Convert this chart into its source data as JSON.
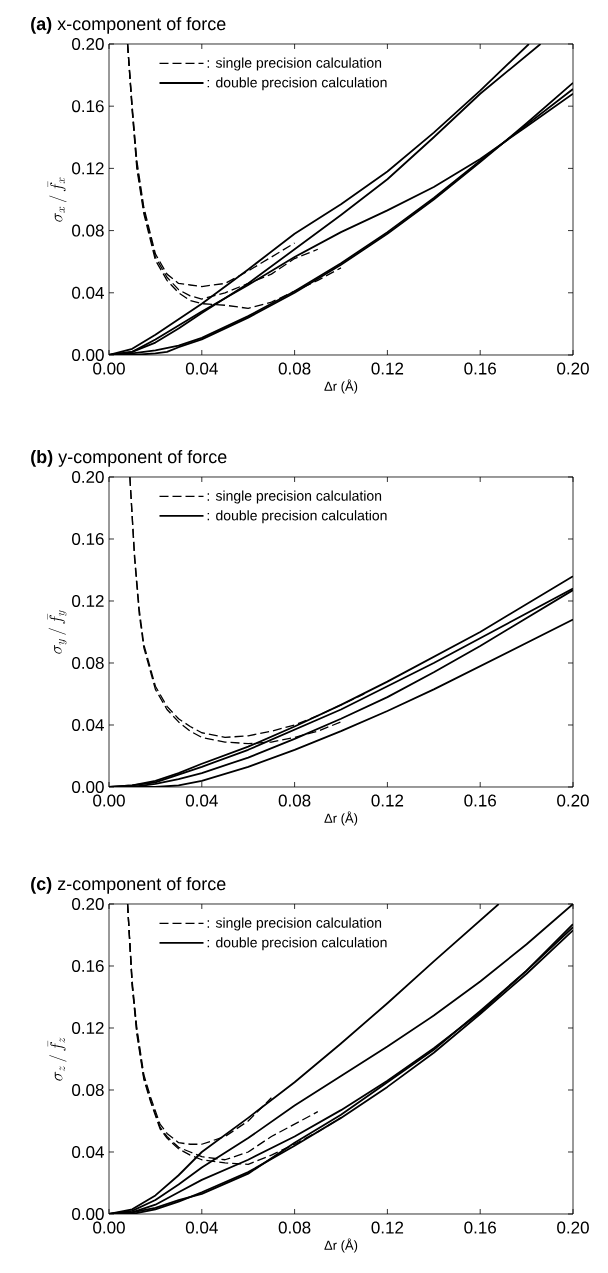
{
  "chart_data": [
    {
      "type": "line",
      "title": "**(a)** x-component of force",
      "xlabel": "Δr (Å)",
      "ylabel": "\\sigma_{x} \\,/\\, \\bar{f}_{x}",
      "xlim": [
        0,
        0.2
      ],
      "ylim": [
        0,
        0.2
      ],
      "xticks": [
        {
          "value": 0,
          "label": "0.00"
        },
        {
          "value": 0.04,
          "label": "0.04"
        },
        {
          "value": 0.08,
          "label": "0.08"
        },
        {
          "value": 0.12,
          "label": "0.12"
        },
        {
          "value": 0.16,
          "label": "0.16"
        },
        {
          "value": 0.2,
          "label": "0.20"
        }
      ],
      "yticks": [
        {
          "value": 0,
          "label": "0.00"
        },
        {
          "value": 0.04,
          "label": "0.04"
        },
        {
          "value": 0.08,
          "label": "0.08"
        },
        {
          "value": 0.12,
          "label": "0.12"
        },
        {
          "value": 0.16,
          "label": "0.16"
        },
        {
          "value": 0.2,
          "label": "0.20"
        }
      ],
      "legend": "top left",
      "grid": false,
      "series": [
        {
          "name": ": single precision calculation",
          "color": "#000000",
          "line_style": "dashed",
          "x": [
            0.008,
            0.01,
            0.012,
            0.015,
            0.02,
            0.025,
            0.03,
            0.035,
            0.04,
            0.05,
            0.06,
            0.07,
            0.08
          ],
          "values": [
            0.2,
            0.16,
            0.125,
            0.095,
            0.065,
            0.052,
            0.046,
            0.045,
            0.044,
            0.046,
            0.054,
            0.063,
            0.072
          ]
        },
        {
          "color": "#000000",
          "line_style": "dashed",
          "x": [
            0.008,
            0.01,
            0.012,
            0.015,
            0.02,
            0.025,
            0.03,
            0.035,
            0.04,
            0.05,
            0.06,
            0.07,
            0.08,
            0.09
          ],
          "values": [
            0.2,
            0.158,
            0.122,
            0.093,
            0.063,
            0.05,
            0.042,
            0.038,
            0.036,
            0.04,
            0.046,
            0.052,
            0.062,
            0.068
          ]
        },
        {
          "color": "#000000",
          "line_style": "dashed",
          "x": [
            0.008,
            0.01,
            0.012,
            0.015,
            0.02,
            0.025,
            0.03,
            0.035,
            0.04,
            0.05,
            0.06,
            0.07,
            0.08,
            0.09,
            0.1
          ],
          "values": [
            0.2,
            0.157,
            0.12,
            0.091,
            0.061,
            0.048,
            0.04,
            0.035,
            0.033,
            0.032,
            0.03,
            0.034,
            0.041,
            0.048,
            0.056
          ]
        },
        {
          "name": ": double precision calculation",
          "color": "#000000",
          "line_style": "solid",
          "x": [
            0,
            0.01,
            0.02,
            0.03,
            0.04,
            0.06,
            0.08,
            0.1,
            0.12,
            0.14,
            0.16,
            0.181
          ],
          "values": [
            0,
            0.004,
            0.013,
            0.023,
            0.033,
            0.055,
            0.078,
            0.097,
            0.118,
            0.143,
            0.17,
            0.2
          ]
        },
        {
          "color": "#000000",
          "line_style": "solid",
          "x": [
            0,
            0.01,
            0.02,
            0.03,
            0.04,
            0.06,
            0.08,
            0.1,
            0.12,
            0.14,
            0.16,
            0.186
          ],
          "values": [
            0,
            0.002,
            0.008,
            0.017,
            0.027,
            0.046,
            0.068,
            0.09,
            0.113,
            0.14,
            0.168,
            0.2
          ]
        },
        {
          "color": "#000000",
          "line_style": "solid",
          "x": [
            0,
            0.01,
            0.02,
            0.03,
            0.04,
            0.06,
            0.08,
            0.1,
            0.12,
            0.14,
            0.16,
            0.18,
            0.2
          ],
          "values": [
            0,
            0.002,
            0.01,
            0.019,
            0.028,
            0.045,
            0.063,
            0.079,
            0.093,
            0.108,
            0.126,
            0.147,
            0.168
          ]
        },
        {
          "color": "#000000",
          "line_style": "solid",
          "x": [
            0,
            0.01,
            0.02,
            0.025,
            0.03,
            0.04,
            0.06,
            0.08,
            0.1,
            0.12,
            0.14,
            0.16,
            0.18,
            0.2
          ],
          "values": [
            0,
            0,
            0.001,
            0.002,
            0.005,
            0.01,
            0.024,
            0.04,
            0.058,
            0.078,
            0.1,
            0.124,
            0.149,
            0.175
          ]
        },
        {
          "color": "#000000",
          "line_style": "solid",
          "x": [
            0,
            0.01,
            0.02,
            0.03,
            0.04,
            0.06,
            0.08,
            0.1,
            0.12,
            0.14,
            0.16,
            0.18,
            0.2
          ],
          "values": [
            0,
            0.001,
            0.003,
            0.006,
            0.011,
            0.025,
            0.041,
            0.059,
            0.079,
            0.101,
            0.125,
            0.148,
            0.171
          ]
        }
      ]
    },
    {
      "type": "line",
      "title": "**(b)** y-component of force",
      "xlabel": "Δr (Å)",
      "ylabel": "\\sigma_{y} \\,/\\, \\bar{f}_{y}",
      "xlim": [
        0,
        0.2
      ],
      "ylim": [
        0,
        0.2
      ],
      "xticks": [
        {
          "value": 0,
          "label": "0.00"
        },
        {
          "value": 0.04,
          "label": "0.04"
        },
        {
          "value": 0.08,
          "label": "0.08"
        },
        {
          "value": 0.12,
          "label": "0.12"
        },
        {
          "value": 0.16,
          "label": "0.16"
        },
        {
          "value": 0.2,
          "label": "0.20"
        }
      ],
      "yticks": [
        {
          "value": 0,
          "label": "0.00"
        },
        {
          "value": 0.04,
          "label": "0.04"
        },
        {
          "value": 0.08,
          "label": "0.08"
        },
        {
          "value": 0.12,
          "label": "0.12"
        },
        {
          "value": 0.16,
          "label": "0.16"
        },
        {
          "value": 0.2,
          "label": "0.20"
        }
      ],
      "legend": "top left",
      "grid": false,
      "series": [
        {
          "name": ": single precision calculation",
          "color": "#000000",
          "line_style": "dashed",
          "x": [
            0.009,
            0.011,
            0.013,
            0.015,
            0.02,
            0.025,
            0.03,
            0.035,
            0.04,
            0.05,
            0.06,
            0.07,
            0.08,
            0.09,
            0.1,
            0.11
          ],
          "values": [
            0.2,
            0.15,
            0.115,
            0.092,
            0.065,
            0.052,
            0.044,
            0.039,
            0.035,
            0.032,
            0.033,
            0.036,
            0.04,
            0.046,
            0.053,
            0.06
          ]
        },
        {
          "color": "#000000",
          "line_style": "dashed",
          "x": [
            0.009,
            0.011,
            0.013,
            0.015,
            0.02,
            0.025,
            0.03,
            0.035,
            0.04,
            0.05,
            0.06,
            0.07,
            0.08,
            0.09,
            0.1
          ],
          "values": [
            0.2,
            0.148,
            0.112,
            0.09,
            0.063,
            0.05,
            0.042,
            0.036,
            0.032,
            0.029,
            0.028,
            0.029,
            0.032,
            0.036,
            0.042
          ]
        },
        {
          "name": ": double precision calculation",
          "color": "#000000",
          "line_style": "solid",
          "x": [
            0,
            0.01,
            0.02,
            0.03,
            0.04,
            0.06,
            0.08,
            0.1,
            0.12,
            0.14,
            0.16,
            0.18,
            0.2
          ],
          "values": [
            0,
            0.001,
            0.004,
            0.009,
            0.015,
            0.026,
            0.039,
            0.053,
            0.068,
            0.084,
            0.1,
            0.118,
            0.136
          ]
        },
        {
          "color": "#000000",
          "line_style": "solid",
          "x": [
            0,
            0.01,
            0.02,
            0.03,
            0.04,
            0.06,
            0.08,
            0.1,
            0.12,
            0.14,
            0.16,
            0.18,
            0.2
          ],
          "values": [
            0,
            0.001,
            0.003,
            0.008,
            0.013,
            0.024,
            0.037,
            0.05,
            0.065,
            0.08,
            0.096,
            0.112,
            0.128
          ]
        },
        {
          "color": "#000000",
          "line_style": "solid",
          "x": [
            0,
            0.01,
            0.02,
            0.03,
            0.04,
            0.06,
            0.08,
            0.1,
            0.12,
            0.14,
            0.16,
            0.18,
            0.2
          ],
          "values": [
            0,
            0,
            0.002,
            0.005,
            0.009,
            0.019,
            0.031,
            0.044,
            0.058,
            0.074,
            0.091,
            0.109,
            0.127
          ]
        },
        {
          "color": "#000000",
          "line_style": "solid",
          "x": [
            0,
            0.01,
            0.02,
            0.03,
            0.04,
            0.06,
            0.08,
            0.1,
            0.12,
            0.14,
            0.16,
            0.18,
            0.2
          ],
          "values": [
            0,
            0,
            0,
            0.001,
            0.004,
            0.013,
            0.024,
            0.036,
            0.049,
            0.063,
            0.078,
            0.093,
            0.108
          ]
        }
      ]
    },
    {
      "type": "line",
      "title": "**(c)** z-component of force",
      "xlabel": "Δr (Å)",
      "ylabel": "\\sigma_{z} \\,/\\, \\bar{f}_{z}",
      "xlim": [
        0,
        0.2
      ],
      "ylim": [
        0,
        0.2
      ],
      "xticks": [
        {
          "value": 0,
          "label": "0.00"
        },
        {
          "value": 0.04,
          "label": "0.04"
        },
        {
          "value": 0.08,
          "label": "0.08"
        },
        {
          "value": 0.12,
          "label": "0.12"
        },
        {
          "value": 0.16,
          "label": "0.16"
        },
        {
          "value": 0.2,
          "label": "0.20"
        }
      ],
      "yticks": [
        {
          "value": 0,
          "label": "0.00"
        },
        {
          "value": 0.04,
          "label": "0.04"
        },
        {
          "value": 0.08,
          "label": "0.08"
        },
        {
          "value": 0.12,
          "label": "0.12"
        },
        {
          "value": 0.16,
          "label": "0.16"
        },
        {
          "value": 0.2,
          "label": "0.20"
        }
      ],
      "legend": "top left",
      "grid": false,
      "series": [
        {
          "name": ": single precision calculation",
          "color": "#000000",
          "line_style": "dashed",
          "x": [
            0.008,
            0.01,
            0.012,
            0.015,
            0.018,
            0.022,
            0.025,
            0.03,
            0.035,
            0.04,
            0.05,
            0.06,
            0.07
          ],
          "values": [
            0.2,
            0.15,
            0.12,
            0.09,
            0.075,
            0.058,
            0.052,
            0.046,
            0.045,
            0.045,
            0.05,
            0.06,
            0.075
          ]
        },
        {
          "color": "#000000",
          "line_style": "dashed",
          "x": [
            0.008,
            0.01,
            0.012,
            0.015,
            0.018,
            0.022,
            0.025,
            0.03,
            0.035,
            0.04,
            0.05,
            0.06,
            0.07,
            0.08,
            0.09
          ],
          "values": [
            0.2,
            0.148,
            0.118,
            0.088,
            0.073,
            0.056,
            0.05,
            0.043,
            0.04,
            0.037,
            0.035,
            0.04,
            0.05,
            0.058,
            0.066
          ]
        },
        {
          "color": "#000000",
          "line_style": "dashed",
          "x": [
            0.008,
            0.01,
            0.012,
            0.015,
            0.018,
            0.022,
            0.025,
            0.03,
            0.035,
            0.04,
            0.05,
            0.06,
            0.07,
            0.08,
            0.09,
            0.1
          ],
          "values": [
            0.2,
            0.147,
            0.116,
            0.087,
            0.072,
            0.055,
            0.049,
            0.042,
            0.038,
            0.035,
            0.033,
            0.032,
            0.038,
            0.045,
            0.053,
            0.062
          ]
        },
        {
          "name": ": double precision calculation",
          "color": "#000000",
          "line_style": "solid",
          "x": [
            0,
            0.01,
            0.02,
            0.03,
            0.04,
            0.06,
            0.08,
            0.1,
            0.12,
            0.14,
            0.168
          ],
          "values": [
            0,
            0.003,
            0.012,
            0.025,
            0.04,
            0.062,
            0.085,
            0.11,
            0.136,
            0.163,
            0.2
          ]
        },
        {
          "color": "#000000",
          "line_style": "solid",
          "x": [
            0,
            0.01,
            0.02,
            0.03,
            0.04,
            0.06,
            0.08,
            0.1,
            0.12,
            0.14,
            0.16,
            0.18,
            0.2
          ],
          "values": [
            0,
            0.002,
            0.009,
            0.019,
            0.03,
            0.049,
            0.07,
            0.089,
            0.108,
            0.128,
            0.15,
            0.174,
            0.2
          ]
        },
        {
          "color": "#000000",
          "line_style": "solid",
          "x": [
            0,
            0.01,
            0.02,
            0.03,
            0.04,
            0.06,
            0.08,
            0.1,
            0.12,
            0.14,
            0.16,
            0.18,
            0.2
          ],
          "values": [
            0,
            0.001,
            0.006,
            0.014,
            0.022,
            0.035,
            0.05,
            0.067,
            0.086,
            0.107,
            0.13,
            0.157,
            0.187
          ]
        },
        {
          "color": "#000000",
          "line_style": "solid",
          "x": [
            0,
            0.01,
            0.02,
            0.03,
            0.04,
            0.06,
            0.08,
            0.1,
            0.12,
            0.14,
            0.16,
            0.18,
            0.2
          ],
          "values": [
            0,
            0,
            0.003,
            0.008,
            0.014,
            0.027,
            0.044,
            0.062,
            0.082,
            0.104,
            0.129,
            0.155,
            0.183
          ]
        },
        {
          "color": "#000000",
          "line_style": "solid",
          "x": [
            0,
            0.01,
            0.02,
            0.03,
            0.04,
            0.06,
            0.08,
            0.1,
            0.12,
            0.14,
            0.16,
            0.18,
            0.2
          ],
          "values": [
            0,
            0.001,
            0.004,
            0.009,
            0.013,
            0.026,
            0.046,
            0.064,
            0.085,
            0.106,
            0.131,
            0.157,
            0.185
          ]
        }
      ]
    }
  ]
}
